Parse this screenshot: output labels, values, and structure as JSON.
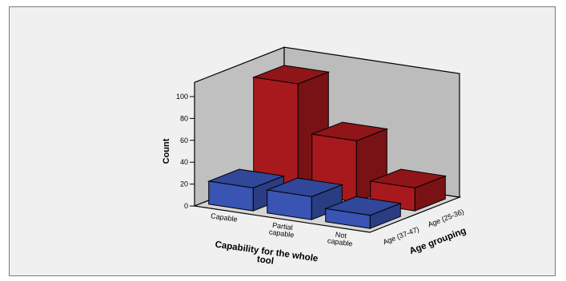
{
  "chart_data": {
    "type": "bar",
    "ylabel": "Count",
    "xlabel": "Capability for the whole tool",
    "zlabel": "Age grouping",
    "ylim": [
      0,
      100
    ],
    "yticks": [
      0,
      20,
      40,
      60,
      80,
      100
    ],
    "categories": [
      "Capable",
      "Partial capable",
      "Not capable"
    ],
    "category_lines": [
      [
        "Capable"
      ],
      [
        "Partial",
        "capable"
      ],
      [
        "Not",
        "capable"
      ]
    ],
    "xlabel_lines": [
      "Capability for the whole",
      "tool"
    ],
    "series": [
      {
        "name": "Age (37-47)",
        "values": [
          21,
          21,
          12
        ],
        "color": "#3a54b4"
      },
      {
        "name": "Age (25-36)",
        "values": [
          100,
          56,
          21
        ],
        "color": "#a8191d"
      }
    ],
    "grid": false
  }
}
